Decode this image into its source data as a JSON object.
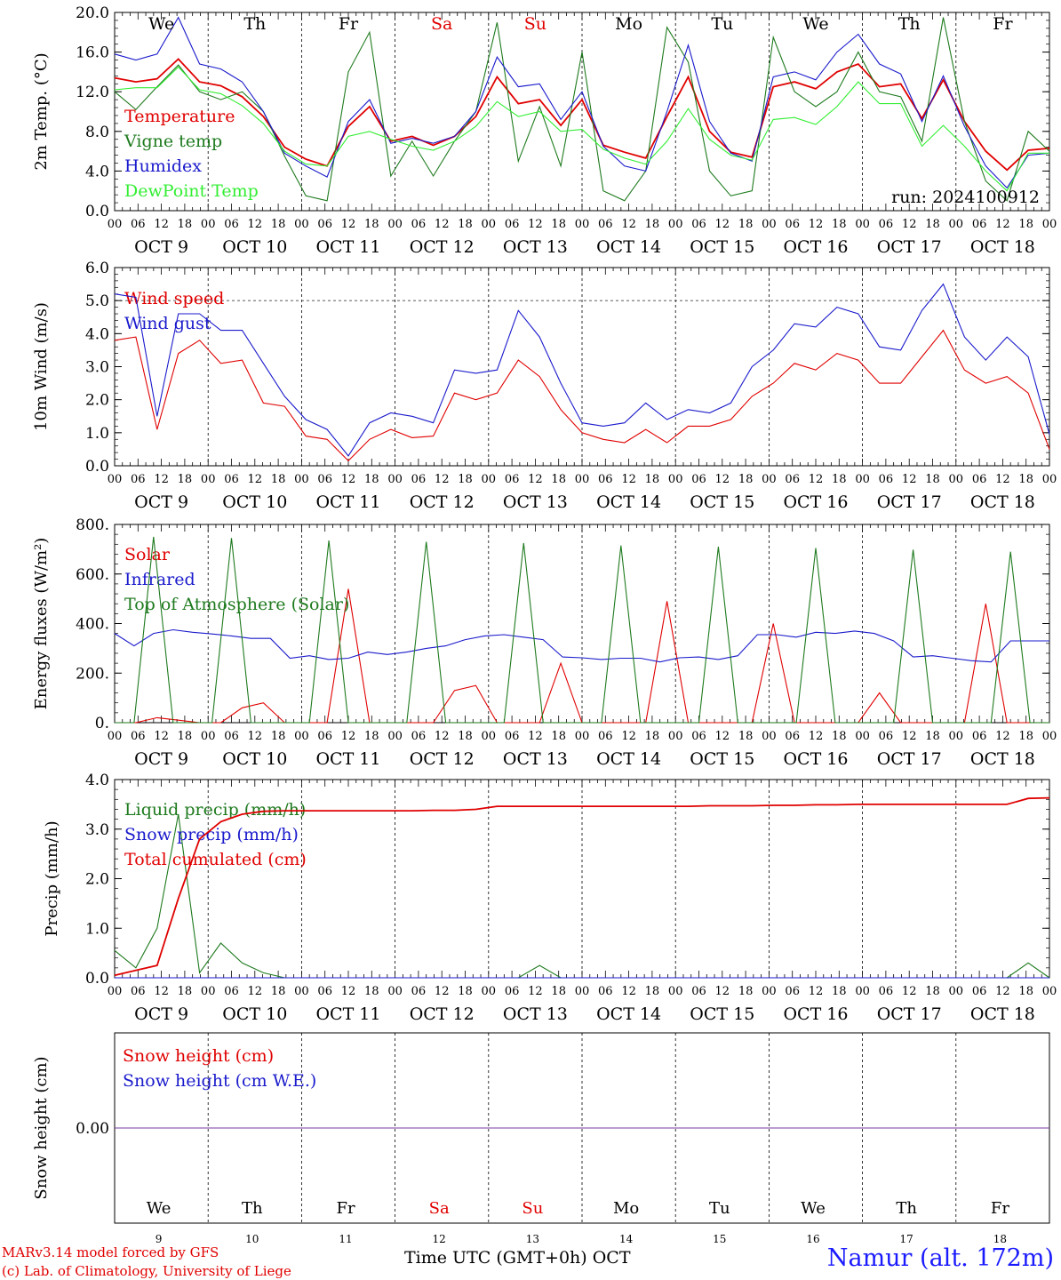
{
  "run_label": "run: 2024100912",
  "day_names": [
    "We",
    "Th",
    "Fr",
    "Sa",
    "Su",
    "Mo",
    "Tu",
    "We",
    "Th",
    "Fr"
  ],
  "weekend_color": "#e00000",
  "hour_ticks": [
    "00",
    "06",
    "12",
    "18"
  ],
  "date_labels": [
    "OCT  9",
    "OCT 10",
    "OCT 11",
    "OCT 12",
    "OCT 13",
    "OCT 14",
    "OCT 15",
    "OCT 16",
    "OCT 17",
    "OCT 18"
  ],
  "bottom_day_numbers": [
    "9",
    "10",
    "11",
    "12",
    "13",
    "14",
    "15",
    "16",
    "17",
    "18"
  ],
  "footer": {
    "model": "MARv3.14 model forced by GFS",
    "lab": "(c) Lab. of Climatology, University of Liege",
    "time_axis": "Time UTC (GMT+0h) OCT",
    "station": "Namur (alt. 172m)"
  },
  "chart_data": [
    {
      "type": "line",
      "ylabel": "2m Temp. (°C)",
      "ylim": [
        0,
        20
      ],
      "yticks": [
        "0.0",
        "4.0",
        "8.0",
        "12.0",
        "16.0",
        "20.0"
      ],
      "x_hours_start": 0,
      "x_hours_step": 6,
      "series": [
        {
          "name": "Temperature",
          "color": "#e00000",
          "values": [
            13.4,
            13.0,
            13.3,
            15.3,
            13.0,
            12.6,
            11.5,
            9.5,
            6.4,
            5.2,
            4.5,
            8.5,
            10.5,
            7.0,
            7.5,
            6.6,
            7.5,
            9.5,
            13.5,
            10.8,
            11.2,
            8.6,
            11.2,
            6.6,
            5.9,
            5.3,
            9.5,
            13.5,
            8.0,
            5.9,
            5.4,
            12.5,
            13.0,
            12.3,
            14.0,
            14.8,
            12.5,
            12.8,
            9.3,
            13.2,
            9.0,
            6.0,
            4.1,
            6.1,
            6.3
          ]
        },
        {
          "name": "Vigne temp",
          "color": "#1e7a1e",
          "values": [
            12.0,
            10.2,
            12.5,
            14.7,
            12.0,
            11.2,
            12.0,
            10.0,
            5.5,
            1.5,
            1.0,
            14.0,
            18.0,
            3.5,
            7.0,
            3.5,
            7.0,
            10.0,
            19.0,
            5.0,
            10.5,
            4.5,
            16.0,
            2.0,
            1.0,
            4.0,
            18.5,
            15.0,
            4.0,
            1.5,
            2.0,
            17.5,
            12.0,
            10.5,
            12.0,
            16.0,
            12.0,
            11.5,
            7.0,
            19.5,
            9.0,
            3.0,
            1.0,
            8.0,
            6.0
          ]
        },
        {
          "name": "Humidex",
          "color": "#1a1acc",
          "values": [
            15.8,
            15.2,
            15.8,
            19.5,
            14.8,
            14.3,
            13.0,
            10.0,
            5.8,
            4.5,
            3.4,
            9.0,
            11.2,
            6.8,
            7.3,
            6.8,
            7.5,
            10.0,
            15.5,
            12.5,
            12.8,
            9.2,
            12.0,
            6.5,
            4.5,
            4.0,
            10.0,
            16.7,
            9.0,
            5.8,
            5.0,
            13.5,
            14.0,
            13.2,
            16.0,
            17.8,
            14.8,
            13.8,
            9.0,
            13.6,
            8.5,
            4.5,
            2.3,
            5.6,
            5.8
          ]
        },
        {
          "name": "DewPoint Temp",
          "color": "#33ee33",
          "values": [
            12.2,
            12.4,
            12.4,
            14.5,
            12.2,
            11.8,
            10.6,
            8.8,
            6.0,
            4.7,
            4.5,
            7.5,
            8.0,
            7.2,
            6.5,
            6.1,
            7.0,
            8.5,
            11.0,
            9.5,
            10.0,
            8.0,
            8.2,
            6.2,
            5.3,
            4.7,
            7.0,
            10.3,
            7.2,
            5.6,
            5.1,
            9.2,
            9.4,
            8.7,
            10.5,
            13.0,
            10.8,
            10.8,
            6.5,
            8.6,
            6.5,
            4.0,
            2.0,
            5.8,
            5.8
          ]
        }
      ]
    },
    {
      "type": "line",
      "ylabel": "10m Wind (m/s)",
      "ylim": [
        0,
        6
      ],
      "yticks": [
        "0.0",
        "1.0",
        "2.0",
        "3.0",
        "4.0",
        "5.0",
        "6.0"
      ],
      "x_hours_start": 0,
      "x_hours_step": 6,
      "series": [
        {
          "name": "Wind speed",
          "color": "#e00000",
          "values": [
            3.8,
            3.9,
            1.1,
            3.4,
            3.8,
            3.1,
            3.2,
            1.9,
            1.8,
            0.9,
            0.8,
            0.15,
            0.8,
            1.1,
            0.85,
            0.9,
            2.2,
            2.0,
            2.2,
            3.2,
            2.7,
            1.7,
            1.0,
            0.8,
            0.7,
            1.1,
            0.7,
            1.2,
            1.2,
            1.4,
            2.1,
            2.5,
            3.1,
            2.9,
            3.4,
            3.2,
            2.5,
            2.5,
            3.3,
            4.1,
            2.9,
            2.5,
            2.7,
            2.2,
            0.5
          ]
        },
        {
          "name": "Wind gust",
          "color": "#1a1acc",
          "values": [
            5.2,
            5.1,
            1.5,
            4.6,
            4.6,
            4.1,
            4.1,
            3.1,
            2.1,
            1.4,
            1.1,
            0.3,
            1.3,
            1.6,
            1.5,
            1.3,
            2.9,
            2.8,
            2.9,
            4.7,
            3.9,
            2.5,
            1.3,
            1.2,
            1.3,
            1.9,
            1.4,
            1.7,
            1.6,
            1.9,
            3.0,
            3.5,
            4.3,
            4.2,
            4.8,
            4.6,
            3.6,
            3.5,
            4.7,
            5.5,
            3.9,
            3.2,
            3.9,
            3.3,
            0.95
          ]
        }
      ]
    },
    {
      "type": "line",
      "ylabel": "Energy fluxes (W/m²)",
      "ylim": [
        0,
        800
      ],
      "yticks": [
        "0.",
        "200.",
        "400.",
        "600.",
        "800."
      ],
      "x_hours_start": 0,
      "x_hours_step": 6,
      "series": [
        {
          "name": "Solar",
          "color": "#e00000",
          "values": [
            0,
            0,
            20,
            10,
            0,
            0,
            60,
            80,
            0,
            0,
            0,
            540,
            0,
            0,
            0,
            0,
            130,
            150,
            0,
            0,
            0,
            240,
            0,
            0,
            0,
            0,
            490,
            0,
            0,
            0,
            0,
            400,
            0,
            0,
            0,
            0,
            120,
            0,
            0,
            0,
            0,
            480,
            0,
            0,
            0
          ]
        },
        {
          "name": "Infrared",
          "color": "#1a1acc",
          "values": [
            360,
            310,
            360,
            375,
            365,
            358,
            350,
            340,
            340,
            260,
            270,
            255,
            260,
            285,
            275,
            285,
            300,
            310,
            335,
            350,
            355,
            345,
            335,
            265,
            262,
            255,
            260,
            260,
            245,
            262,
            265,
            255,
            270,
            355,
            355,
            345,
            365,
            360,
            370,
            360,
            330,
            265,
            270,
            260,
            250,
            245,
            330,
            330,
            330
          ]
        },
        {
          "name": "Top of Atmosphere (Solar)",
          "color": "#1e7a1e",
          "values": [
            0,
            0,
            750,
            0,
            0,
            0,
            745,
            0,
            0,
            0,
            0,
            735,
            0,
            0,
            0,
            0,
            730,
            0,
            0,
            0,
            0,
            725,
            0,
            0,
            0,
            0,
            715,
            0,
            0,
            0,
            0,
            710,
            0,
            0,
            0,
            0,
            705,
            0,
            0,
            0,
            0,
            698,
            0,
            0,
            0,
            0,
            690,
            0,
            0
          ]
        }
      ]
    },
    {
      "type": "line",
      "ylabel": "Precip (mm/h)",
      "ylim": [
        0,
        4
      ],
      "yticks": [
        "0.0",
        "1.0",
        "2.0",
        "3.0",
        "4.0"
      ],
      "x_hours_start": 0,
      "x_hours_step": 6,
      "series": [
        {
          "name": "Liquid precip (mm/h)",
          "color": "#1e7a1e",
          "values": [
            0.55,
            0.2,
            1.0,
            3.3,
            0.1,
            0.7,
            0.3,
            0.1,
            0,
            0,
            0,
            0,
            0,
            0,
            0,
            0,
            0,
            0,
            0,
            0,
            0.25,
            0,
            0,
            0,
            0,
            0,
            0,
            0,
            0,
            0,
            0,
            0,
            0,
            0,
            0,
            0,
            0,
            0,
            0,
            0,
            0,
            0,
            0,
            0.3,
            0
          ]
        },
        {
          "name": "Snow precip (mm/h)",
          "color": "#1a1acc",
          "values": [
            0,
            0,
            0,
            0,
            0,
            0,
            0,
            0,
            0,
            0,
            0,
            0,
            0,
            0,
            0,
            0,
            0,
            0,
            0,
            0,
            0,
            0,
            0,
            0,
            0,
            0,
            0,
            0,
            0,
            0,
            0,
            0,
            0,
            0,
            0,
            0,
            0,
            0,
            0,
            0,
            0,
            0,
            0,
            0,
            0
          ]
        },
        {
          "name": "Total cumulated (cm)",
          "color": "#e00000",
          "values": [
            0.05,
            0.15,
            0.25,
            1.6,
            2.8,
            3.15,
            3.3,
            3.36,
            3.37,
            3.37,
            3.37,
            3.37,
            3.37,
            3.37,
            3.37,
            3.38,
            3.38,
            3.4,
            3.46,
            3.46,
            3.46,
            3.46,
            3.46,
            3.46,
            3.46,
            3.46,
            3.46,
            3.46,
            3.47,
            3.47,
            3.47,
            3.48,
            3.48,
            3.49,
            3.49,
            3.5,
            3.5,
            3.5,
            3.5,
            3.5,
            3.5,
            3.5,
            3.5,
            3.62,
            3.63
          ]
        }
      ]
    },
    {
      "type": "line",
      "ylabel": "Snow height (cm)",
      "yticks": [
        "0.00"
      ],
      "series": [
        {
          "name": "Snow height (cm)",
          "color": "#e00000",
          "values": [
            0,
            0
          ]
        },
        {
          "name": "Snow height (cm W.E.)",
          "color": "#1a1acc",
          "values": [
            0,
            0
          ]
        }
      ]
    }
  ]
}
